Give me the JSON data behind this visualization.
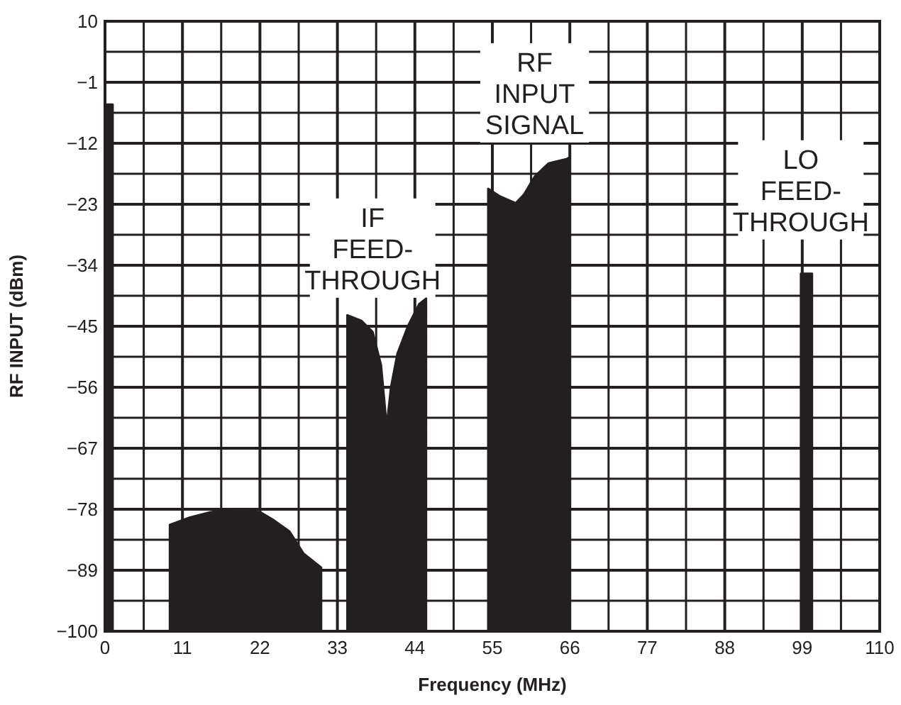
{
  "chart_data": {
    "type": "area",
    "xlabel": "Frequency (MHz)",
    "ylabel": "RF INPUT (dBm)",
    "xlim": [
      0,
      110
    ],
    "ylim": [
      -100,
      10
    ],
    "xticks": [
      0,
      11,
      22,
      33,
      44,
      55,
      66,
      77,
      88,
      99,
      110
    ],
    "yticks": [
      10,
      -1,
      -12,
      -23,
      -34,
      -45,
      -56,
      -67,
      -78,
      -89,
      -100
    ],
    "grid": true,
    "series": [
      {
        "color": "#231f20",
        "x": [
          0.3,
          0.3,
          1.1,
          1.1
        ],
        "values": [
          -100,
          -5,
          -5,
          -100
        ]
      },
      {
        "color": "#231f20",
        "x": [
          9.2,
          9.2,
          12,
          15,
          18,
          22,
          24,
          26.2,
          28.2,
          30.7,
          30.7
        ],
        "values": [
          -100,
          -80.8,
          -79.5,
          -78.5,
          -78,
          -78.5,
          -80,
          -82,
          -86,
          -88.5,
          -100
        ]
      },
      {
        "color": "#231f20",
        "x": [
          34.4,
          34.4,
          36.4,
          38,
          39.2,
          40,
          40.6,
          41.5,
          43,
          44.6,
          45.6,
          45.6
        ],
        "values": [
          -100,
          -43,
          -44,
          -46,
          -52,
          -63,
          -56,
          -50,
          -45,
          -41,
          -40,
          -100
        ]
      },
      {
        "color": "#231f20",
        "x": [
          54.4,
          54.4,
          56,
          58.3,
          59.5,
          61,
          63,
          65.6,
          66,
          66
        ],
        "values": [
          -100,
          -20.2,
          -21.5,
          -22.8,
          -21.2,
          -18,
          -15.6,
          -14.8,
          -14.5,
          -100
        ]
      },
      {
        "color": "#231f20",
        "x": [
          98.8,
          98.8,
          100.4,
          100.4
        ],
        "values": [
          -100,
          -35.5,
          -35.5,
          -100
        ]
      }
    ],
    "annotations": [
      {
        "text": "IF\nFEED-\nTHROUGH",
        "x": 38,
        "y": -46
      },
      {
        "text": "RF\nINPUT\nSIGNAL",
        "x": 61,
        "y": -18
      },
      {
        "text": "LO\nFEED-\nTHROUGH",
        "x": 98.8,
        "y": -35.5
      }
    ]
  }
}
